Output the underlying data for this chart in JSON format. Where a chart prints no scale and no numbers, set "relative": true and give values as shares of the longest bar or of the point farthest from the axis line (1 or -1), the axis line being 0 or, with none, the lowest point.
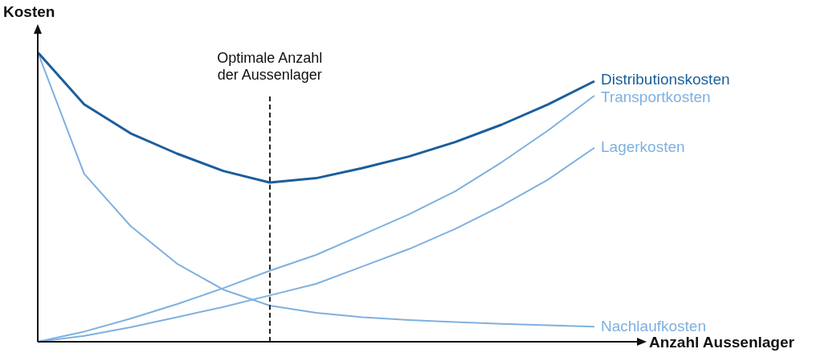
{
  "chart_data": {
    "type": "line",
    "xlabel": "Anzahl Aussenlager",
    "ylabel": "Kosten",
    "relative": true,
    "categories": [
      null,
      null,
      null,
      null,
      null,
      null,
      null,
      null,
      null,
      null,
      null,
      null,
      null
    ],
    "tick_labels": false,
    "series": [
      {
        "name": "Distributionskosten",
        "color": "#1b5e9c",
        "values": [
          1,
          0.82,
          0.72,
          0.65,
          0.59,
          0.55,
          0.565,
          0.6,
          0.64,
          0.69,
          0.75,
          0.82,
          0.9
        ]
      },
      {
        "name": "Transportkosten",
        "color": "#7fb0e0",
        "values": [
          0,
          0.035,
          0.08,
          0.13,
          0.185,
          0.245,
          0.3,
          0.37,
          0.44,
          0.52,
          0.62,
          0.73,
          0.85
        ]
      },
      {
        "name": "Lagerkosten",
        "color": "#7fb0e0",
        "values": [
          0,
          0.02,
          0.05,
          0.085,
          0.12,
          0.16,
          0.2,
          0.26,
          0.32,
          0.39,
          0.47,
          0.56,
          0.67
        ]
      },
      {
        "name": "Nachlaufkosten",
        "color": "#7fb0e0",
        "values": [
          1,
          0.58,
          0.4,
          0.27,
          0.18,
          0.125,
          0.1,
          0.085,
          0.075,
          0.068,
          0.062,
          0.057,
          0.052
        ]
      }
    ],
    "annotations": [
      "Optimale Anzahl der Aussenlager"
    ]
  }
}
